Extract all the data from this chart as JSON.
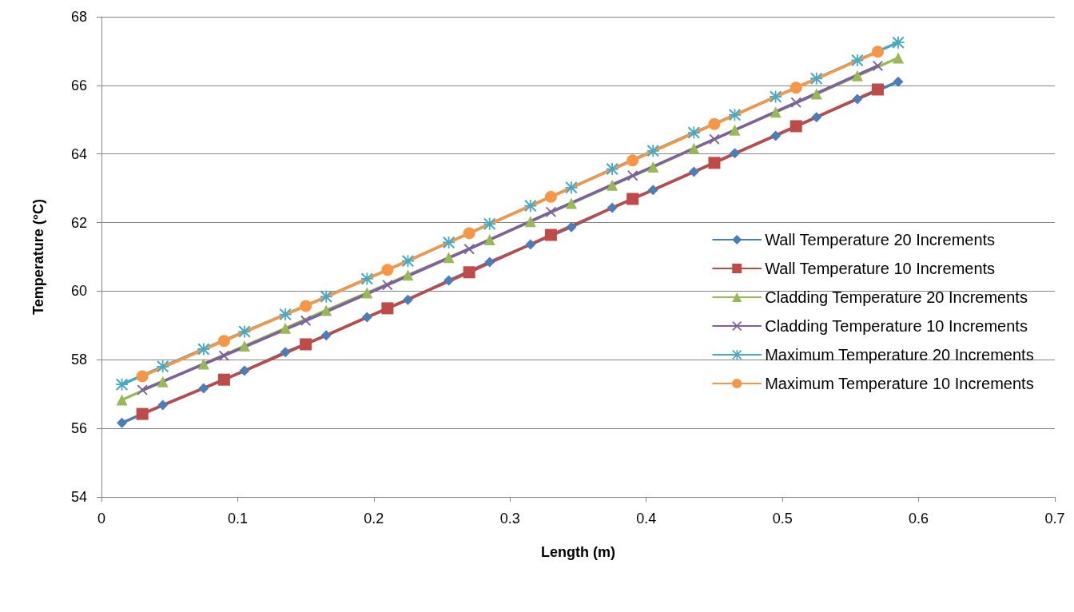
{
  "chart_data": {
    "type": "line",
    "xlabel": "Length (m)",
    "ylabel": "Temperature (°C)",
    "xlim": [
      0,
      0.7
    ],
    "xticks": [
      0,
      0.1,
      0.2,
      0.3,
      0.4,
      0.5,
      0.6,
      0.7
    ],
    "ylim": [
      54,
      68
    ],
    "yticks": [
      54,
      56,
      58,
      60,
      62,
      64,
      66,
      68
    ],
    "grid": "y",
    "legend": "right",
    "line_style": "solid",
    "series": [
      {
        "name": "Wall Temperature 20 Increments",
        "color": "#4a7ebb",
        "marker": "diamond",
        "x": [
          0.015,
          0.045,
          0.075,
          0.105,
          0.135,
          0.165,
          0.195,
          0.225,
          0.255,
          0.285,
          0.315,
          0.345,
          0.375,
          0.405,
          0.435,
          0.465,
          0.495,
          0.525,
          0.555,
          0.585
        ],
        "values": [
          56.16,
          56.68,
          57.17,
          57.68,
          58.22,
          58.71,
          59.24,
          59.75,
          60.31,
          60.85,
          61.36,
          61.87,
          62.43,
          62.95,
          63.48,
          64.02,
          64.53,
          65.07,
          65.6,
          66.11
        ]
      },
      {
        "name": "Wall Temperature 10 Increments",
        "color": "#be4b48",
        "marker": "square",
        "x": [
          0.03,
          0.09,
          0.15,
          0.21,
          0.27,
          0.33,
          0.39,
          0.45,
          0.51,
          0.57
        ],
        "values": [
          56.42,
          57.42,
          58.45,
          59.5,
          60.55,
          61.64,
          62.69,
          63.74,
          64.81,
          65.88
        ]
      },
      {
        "name": "Cladding Temperature 20 Increments",
        "color": "#98b954",
        "marker": "triangle",
        "x": [
          0.015,
          0.045,
          0.075,
          0.105,
          0.135,
          0.165,
          0.195,
          0.225,
          0.255,
          0.285,
          0.315,
          0.345,
          0.375,
          0.405,
          0.435,
          0.465,
          0.495,
          0.525,
          0.555,
          0.585
        ],
        "values": [
          56.83,
          57.36,
          57.88,
          58.4,
          58.92,
          59.44,
          59.95,
          60.47,
          60.98,
          61.5,
          62.03,
          62.56,
          63.09,
          63.62,
          64.16,
          64.7,
          65.22,
          65.75,
          66.28,
          66.8
        ]
      },
      {
        "name": "Cladding Temperature 10 Increments",
        "color": "#7d60a0",
        "marker": "cross",
        "x": [
          0.03,
          0.09,
          0.15,
          0.21,
          0.27,
          0.33,
          0.39,
          0.45,
          0.51,
          0.57
        ],
        "values": [
          57.12,
          58.12,
          59.14,
          60.18,
          61.23,
          62.31,
          63.37,
          64.43,
          65.5,
          66.57
        ]
      },
      {
        "name": "Maximum Temperature 20 Increments",
        "color": "#46aac5",
        "marker": "star",
        "x": [
          0.015,
          0.045,
          0.075,
          0.105,
          0.135,
          0.165,
          0.195,
          0.225,
          0.255,
          0.285,
          0.315,
          0.345,
          0.375,
          0.405,
          0.435,
          0.465,
          0.495,
          0.525,
          0.555,
          0.585
        ],
        "values": [
          57.28,
          57.8,
          58.31,
          58.82,
          59.32,
          59.84,
          60.36,
          60.88,
          61.42,
          61.96,
          62.49,
          63.02,
          63.56,
          64.09,
          64.62,
          65.14,
          65.67,
          66.2,
          66.73,
          67.25
        ]
      },
      {
        "name": "Maximum Temperature 10 Increments",
        "color": "#f79646",
        "marker": "circle",
        "x": [
          0.03,
          0.09,
          0.15,
          0.21,
          0.27,
          0.33,
          0.39,
          0.45,
          0.51,
          0.57
        ],
        "values": [
          57.52,
          58.55,
          59.57,
          60.62,
          61.69,
          62.75,
          63.81,
          64.87,
          65.93,
          66.98
        ]
      }
    ]
  }
}
